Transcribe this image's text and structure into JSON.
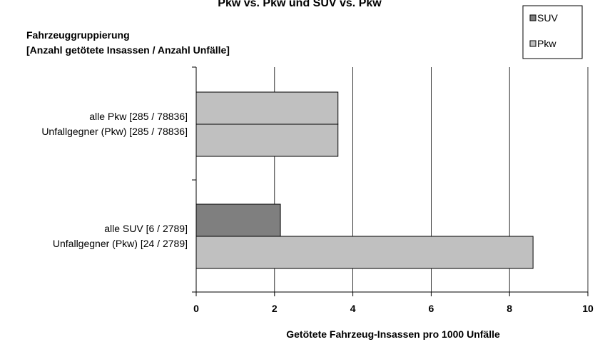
{
  "chart_data": {
    "type": "bar",
    "orientation": "horizontal",
    "title": "Pkw vs. Pkw und SUV vs. Pkw",
    "ylabel_lines": [
      "Fahrzeuggruppierung",
      "[Anzahl getötete Insassen / Anzahl Unfälle]"
    ],
    "xlabel": "Getötete Fahrzeug-Insassen pro 1000 Unfälle",
    "xlim": [
      0,
      10
    ],
    "xticks": [
      "0",
      "2",
      "4",
      "6",
      "8",
      "10"
    ],
    "grid": true,
    "legend_position": "top-right",
    "categories": [
      {
        "line1": "alle Pkw [285 / 78836]",
        "line2": "Unfallgegner (Pkw) [285 / 78836]"
      },
      {
        "line1": "alle SUV [6 / 2789]",
        "line2": "Unfallgegner (Pkw) [24 / 2789]"
      }
    ],
    "series": [
      {
        "name": "SUV",
        "color": "#7f7f7f",
        "values": [
          null,
          2.15
        ]
      },
      {
        "name": "Pkw",
        "color": "#c0c0c0",
        "values": [
          3.62,
          8.6
        ]
      }
    ],
    "bars": [
      {
        "category": 0,
        "series": "Pkw",
        "value": 3.62
      },
      {
        "category": 0,
        "series": "Pkw",
        "value": 3.62
      },
      {
        "category": 1,
        "series": "SUV",
        "value": 2.15
      },
      {
        "category": 1,
        "series": "Pkw",
        "value": 8.6
      }
    ]
  }
}
